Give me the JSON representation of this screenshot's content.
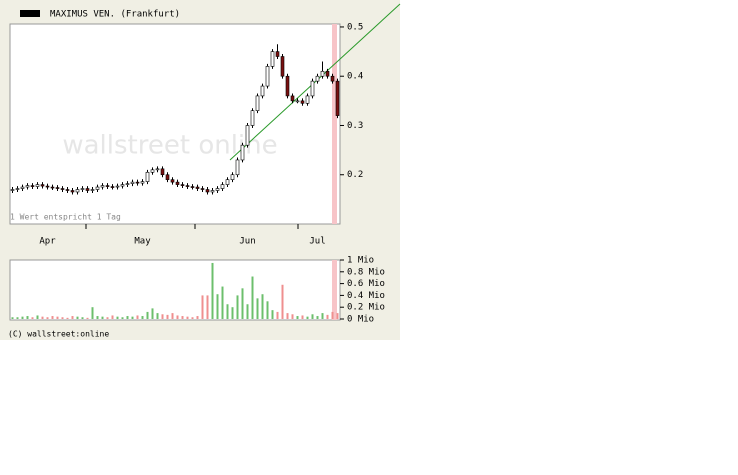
{
  "chart_data": [
    {
      "type": "candlestick",
      "title": "MAXIMUS VEN. (Frankfurt)",
      "legend_color": "#000000",
      "watermark": "wallstreet online",
      "note": "1 Wert entspricht 1 Tag",
      "categories": [
        null,
        null,
        null,
        null,
        null,
        null,
        null,
        "Apr",
        null,
        null,
        null,
        null,
        null,
        null,
        null,
        null,
        null,
        null,
        null,
        null,
        null,
        null,
        null,
        null,
        null,
        null,
        "May",
        null,
        null,
        null,
        null,
        null,
        null,
        null,
        null,
        null,
        null,
        null,
        null,
        null,
        null,
        null,
        null,
        null,
        null,
        null,
        null,
        "Jun",
        null,
        null,
        null,
        null,
        null,
        null,
        null,
        null,
        null,
        null,
        null,
        null,
        null,
        "Jul",
        null,
        null,
        null,
        null
      ],
      "open": [
        0.168,
        0.17,
        0.172,
        0.175,
        0.178,
        0.176,
        0.18,
        0.177,
        0.175,
        0.174,
        0.172,
        0.17,
        0.168,
        0.165,
        0.17,
        0.172,
        0.168,
        0.17,
        0.175,
        0.178,
        0.176,
        0.175,
        0.177,
        0.18,
        0.182,
        0.185,
        0.183,
        0.186,
        0.205,
        0.21,
        0.212,
        0.2,
        0.19,
        0.185,
        0.18,
        0.178,
        0.176,
        0.175,
        0.172,
        0.17,
        0.165,
        0.168,
        0.172,
        0.18,
        0.19,
        0.2,
        0.23,
        0.26,
        0.3,
        0.33,
        0.36,
        0.38,
        0.42,
        0.45,
        0.44,
        0.4,
        0.36,
        0.35,
        0.35,
        0.345,
        0.36,
        0.39,
        0.4,
        0.41,
        0.4,
        0.39
      ],
      "high": [
        0.175,
        0.177,
        0.18,
        0.183,
        0.183,
        0.185,
        0.185,
        0.182,
        0.18,
        0.179,
        0.177,
        0.175,
        0.173,
        0.175,
        0.177,
        0.177,
        0.175,
        0.18,
        0.183,
        0.183,
        0.181,
        0.182,
        0.185,
        0.187,
        0.19,
        0.19,
        0.191,
        0.21,
        0.215,
        0.217,
        0.217,
        0.205,
        0.195,
        0.19,
        0.185,
        0.183,
        0.181,
        0.18,
        0.177,
        0.175,
        0.173,
        0.177,
        0.185,
        0.195,
        0.205,
        0.235,
        0.265,
        0.305,
        0.335,
        0.365,
        0.385,
        0.425,
        0.455,
        0.465,
        0.445,
        0.405,
        0.365,
        0.355,
        0.355,
        0.365,
        0.395,
        0.405,
        0.43,
        0.415,
        0.405,
        0.395
      ],
      "low": [
        0.163,
        0.165,
        0.167,
        0.17,
        0.171,
        0.171,
        0.172,
        0.17,
        0.169,
        0.167,
        0.165,
        0.163,
        0.16,
        0.16,
        0.165,
        0.163,
        0.163,
        0.165,
        0.17,
        0.171,
        0.17,
        0.17,
        0.172,
        0.175,
        0.177,
        0.178,
        0.178,
        0.181,
        0.2,
        0.205,
        0.195,
        0.185,
        0.18,
        0.175,
        0.173,
        0.171,
        0.17,
        0.167,
        0.165,
        0.16,
        0.16,
        0.163,
        0.167,
        0.175,
        0.185,
        0.195,
        0.225,
        0.255,
        0.295,
        0.325,
        0.355,
        0.375,
        0.415,
        0.435,
        0.395,
        0.355,
        0.345,
        0.345,
        0.34,
        0.34,
        0.355,
        0.385,
        0.395,
        0.395,
        0.385,
        0.315
      ],
      "close": [
        0.17,
        0.172,
        0.175,
        0.178,
        0.176,
        0.18,
        0.177,
        0.175,
        0.174,
        0.172,
        0.17,
        0.168,
        0.165,
        0.17,
        0.172,
        0.168,
        0.17,
        0.175,
        0.178,
        0.176,
        0.175,
        0.177,
        0.18,
        0.182,
        0.185,
        0.183,
        0.186,
        0.205,
        0.21,
        0.212,
        0.2,
        0.19,
        0.185,
        0.18,
        0.178,
        0.176,
        0.175,
        0.172,
        0.17,
        0.165,
        0.168,
        0.172,
        0.18,
        0.19,
        0.2,
        0.23,
        0.26,
        0.3,
        0.33,
        0.36,
        0.38,
        0.42,
        0.45,
        0.44,
        0.4,
        0.36,
        0.35,
        0.35,
        0.345,
        0.36,
        0.39,
        0.4,
        0.41,
        0.4,
        0.39,
        0.32
      ],
      "up_color": "#ffffff",
      "down_color": "#7a1010",
      "ylim": [
        0.1,
        0.506
      ],
      "yticks": [
        0.2,
        0.3,
        0.4,
        0.5
      ]
    },
    {
      "type": "bar",
      "copyright": "(C) wallstreet:online",
      "values": [
        0.03,
        0.03,
        0.04,
        0.05,
        0.03,
        0.06,
        0.04,
        0.03,
        0.05,
        0.04,
        0.03,
        0.02,
        0.05,
        0.04,
        0.03,
        0.02,
        0.2,
        0.05,
        0.04,
        0.03,
        0.06,
        0.04,
        0.03,
        0.05,
        0.04,
        0.06,
        0.05,
        0.12,
        0.18,
        0.1,
        0.08,
        0.07,
        0.1,
        0.06,
        0.05,
        0.04,
        0.03,
        0.05,
        0.4,
        0.4,
        0.95,
        0.42,
        0.55,
        0.25,
        0.2,
        0.4,
        0.52,
        0.25,
        0.72,
        0.35,
        0.42,
        0.3,
        0.15,
        0.12,
        0.58,
        0.1,
        0.08,
        0.05,
        0.06,
        0.04,
        0.08,
        0.05,
        0.1,
        0.07,
        0.12,
        0.1
      ],
      "up_color": "#6cbf6c",
      "down_color": "#ef8f8f",
      "ylim": [
        0,
        1
      ],
      "yticks": [
        {
          "value": 0,
          "label": "0 Mio"
        },
        {
          "value": 0.2,
          "label": "0.2 Mio"
        },
        {
          "value": 0.4,
          "label": "0.4 Mio"
        },
        {
          "value": 0.6,
          "label": "0.6 Mio"
        },
        {
          "value": 0.8,
          "label": "0.8 Mio"
        },
        {
          "value": 1,
          "label": "1 Mio"
        }
      ]
    }
  ]
}
